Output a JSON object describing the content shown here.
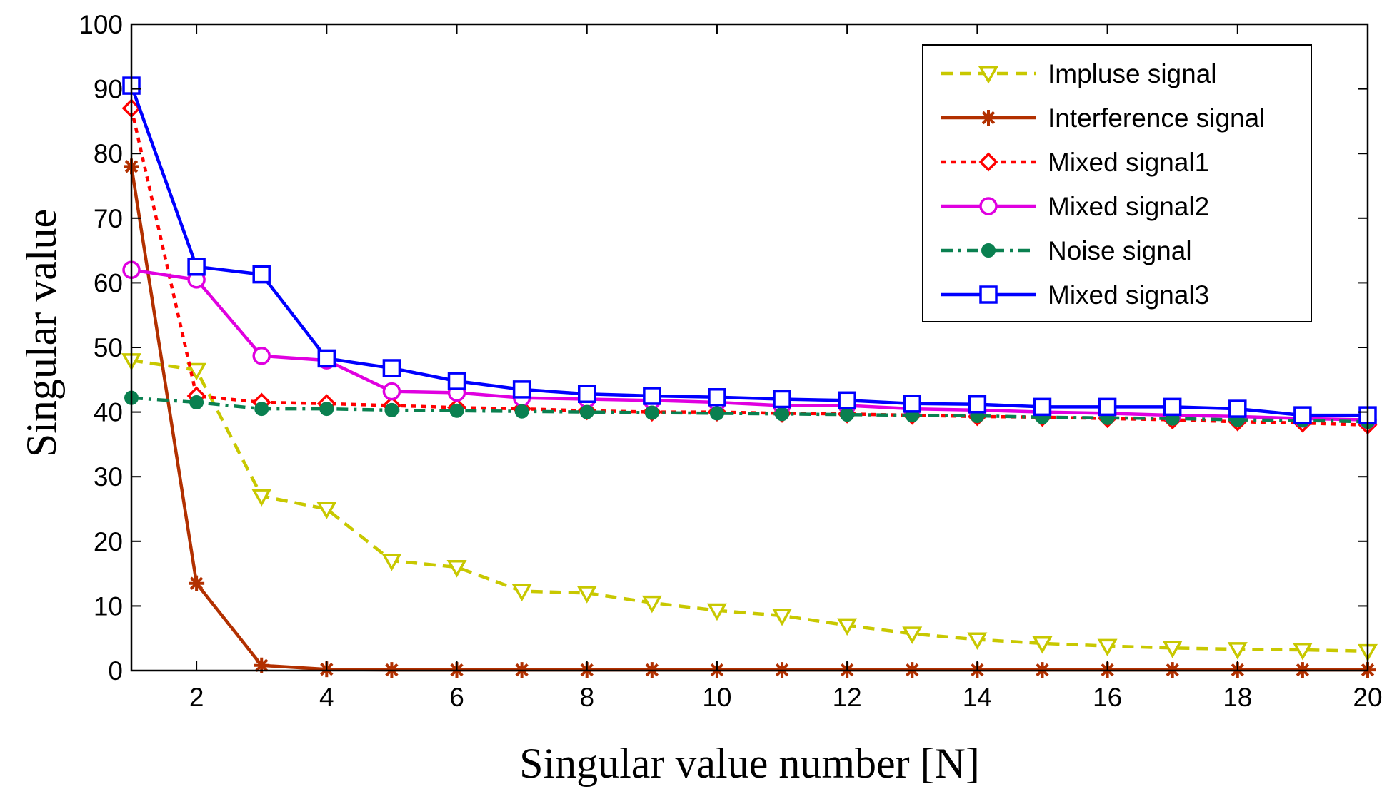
{
  "chart_data": {
    "type": "line",
    "title": "",
    "xlabel": "Singular value number [N]",
    "ylabel": "Singular value",
    "xlim": [
      1,
      20
    ],
    "ylim": [
      0,
      100
    ],
    "xticks": [
      2,
      4,
      6,
      8,
      10,
      12,
      14,
      16,
      18,
      20
    ],
    "yticks": [
      0,
      10,
      20,
      30,
      40,
      50,
      60,
      70,
      80,
      90,
      100
    ],
    "grid": false,
    "legend_position": "top-right",
    "x": [
      1,
      2,
      3,
      4,
      5,
      6,
      7,
      8,
      9,
      10,
      11,
      12,
      13,
      14,
      15,
      16,
      17,
      18,
      19,
      20
    ],
    "series": [
      {
        "name": "Impluse signal",
        "color": "#c8c800",
        "dash": "dashed",
        "marker": "triangle-down",
        "values": [
          48,
          46.5,
          27,
          25,
          17,
          16,
          12.3,
          12,
          10.5,
          9.3,
          8.5,
          7,
          5.7,
          4.8,
          4.2,
          3.8,
          3.5,
          3.3,
          3.2,
          3
        ]
      },
      {
        "name": "Interference signal",
        "color": "#b23000",
        "dash": "solid",
        "marker": "star",
        "values": [
          78,
          13.5,
          0.8,
          0.2,
          0.1,
          0.1,
          0.1,
          0.1,
          0.1,
          0.1,
          0.1,
          0.1,
          0.1,
          0.1,
          0.1,
          0.1,
          0.1,
          0.1,
          0.1,
          0.1
        ]
      },
      {
        "name": "Mixed signal1",
        "color": "#ff0000",
        "dash": "dotted",
        "marker": "diamond",
        "values": [
          87,
          42.5,
          41.5,
          41.3,
          41,
          40.7,
          40.5,
          40.2,
          40,
          40,
          39.8,
          39.7,
          39.5,
          39.3,
          39.2,
          39,
          38.8,
          38.5,
          38.3,
          38
        ]
      },
      {
        "name": "Mixed signal2",
        "color": "#e000e0",
        "dash": "solid",
        "marker": "circle",
        "values": [
          62,
          60.5,
          48.7,
          48,
          43.2,
          43,
          42.2,
          42,
          41.8,
          41.5,
          41,
          41,
          40.5,
          40.3,
          40,
          39.8,
          39.5,
          39.3,
          39,
          38.8
        ]
      },
      {
        "name": "Noise signal",
        "color": "#0a8050",
        "dash": "dashdot",
        "marker": "filled-circle",
        "values": [
          42.2,
          41.5,
          40.5,
          40.5,
          40.3,
          40.2,
          40.1,
          40,
          39.9,
          39.8,
          39.7,
          39.6,
          39.5,
          39.4,
          39.2,
          39.1,
          39,
          38.8,
          38.7,
          38.5
        ]
      },
      {
        "name": "Mixed signal3",
        "color": "#0000ff",
        "dash": "solid",
        "marker": "square",
        "values": [
          90.5,
          62.5,
          61.3,
          48.3,
          46.8,
          44.8,
          43.5,
          42.8,
          42.5,
          42.3,
          42,
          41.8,
          41.3,
          41.2,
          40.8,
          40.8,
          40.8,
          40.5,
          39.5,
          39.5
        ]
      }
    ]
  }
}
